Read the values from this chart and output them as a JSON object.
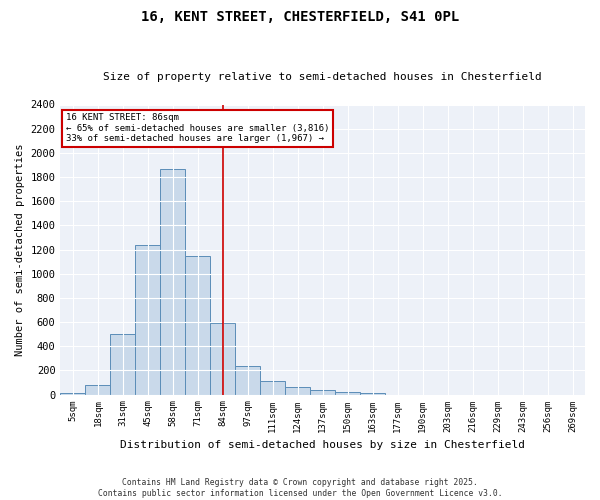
{
  "title": "16, KENT STREET, CHESTERFIELD, S41 0PL",
  "subtitle": "Size of property relative to semi-detached houses in Chesterfield",
  "xlabel": "Distribution of semi-detached houses by size in Chesterfield",
  "ylabel": "Number of semi-detached properties",
  "bar_labels": [
    "5sqm",
    "18sqm",
    "31sqm",
    "45sqm",
    "58sqm",
    "71sqm",
    "84sqm",
    "97sqm",
    "111sqm",
    "124sqm",
    "137sqm",
    "150sqm",
    "163sqm",
    "177sqm",
    "190sqm",
    "203sqm",
    "216sqm",
    "229sqm",
    "243sqm",
    "256sqm",
    "269sqm"
  ],
  "bar_values": [
    15,
    80,
    500,
    1240,
    1870,
    1150,
    590,
    240,
    110,
    60,
    40,
    20,
    10,
    0,
    0,
    0,
    0,
    0,
    0,
    0,
    0
  ],
  "bar_color": "#c9d9ea",
  "bar_edge_color": "#5b8db8",
  "background_color": "#edf1f8",
  "grid_color": "#ffffff",
  "vline_x_index": 6,
  "vline_color": "#cc0000",
  "property_label": "16 KENT STREET: 86sqm",
  "smaller_pct": 65,
  "smaller_count": 3816,
  "larger_pct": 33,
  "larger_count": 1967,
  "annotation_box_color": "#cc0000",
  "ylim": [
    0,
    2400
  ],
  "yticks": [
    0,
    200,
    400,
    600,
    800,
    1000,
    1200,
    1400,
    1600,
    1800,
    2000,
    2200,
    2400
  ],
  "footer1": "Contains HM Land Registry data © Crown copyright and database right 2025.",
  "footer2": "Contains public sector information licensed under the Open Government Licence v3.0."
}
